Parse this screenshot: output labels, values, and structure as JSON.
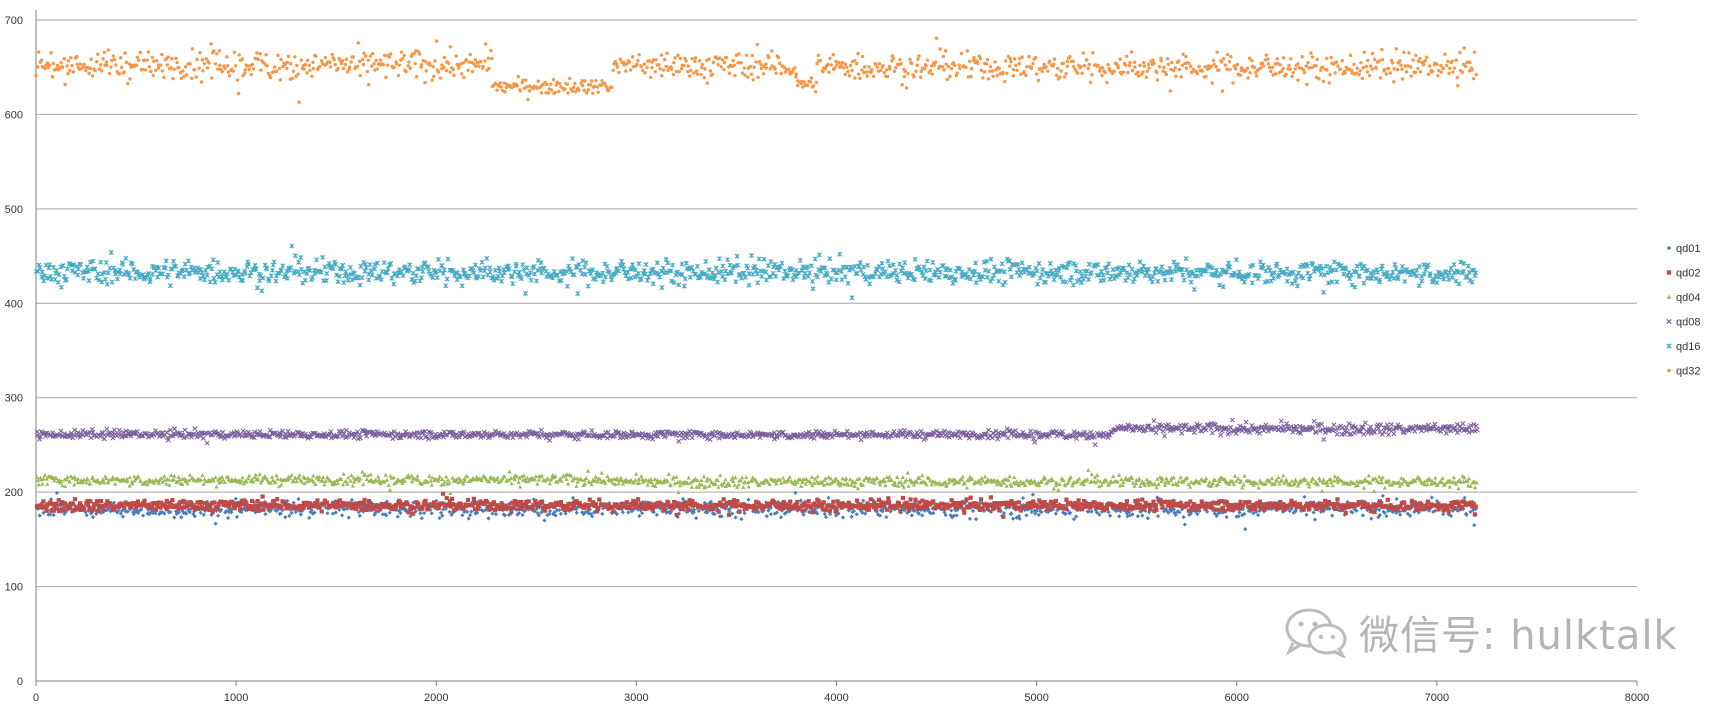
{
  "chart_data": {
    "type": "scatter",
    "title": "",
    "xlabel": "",
    "ylabel": "",
    "xlim": [
      0,
      8000
    ],
    "ylim": [
      0,
      700
    ],
    "x_ticks": [
      0,
      1000,
      2000,
      3000,
      4000,
      5000,
      6000,
      7000,
      8000
    ],
    "y_ticks": [
      0,
      100,
      200,
      300,
      400,
      500,
      600,
      700
    ],
    "grid": "horizontal",
    "legend": "right",
    "x_max_point": 7200,
    "series": [
      {
        "name": "qd01",
        "color": "#4a7ebb",
        "marker": "diamond",
        "segments": [
          {
            "x_start": 0,
            "x_end": 7200,
            "level": 182,
            "spread": 6
          }
        ]
      },
      {
        "name": "qd02",
        "color": "#be4b48",
        "marker": "square",
        "segments": [
          {
            "x_start": 0,
            "x_end": 7200,
            "level": 186,
            "spread": 4
          }
        ]
      },
      {
        "name": "qd04",
        "color": "#98b954",
        "marker": "triangle",
        "segments": [
          {
            "x_start": 0,
            "x_end": 2900,
            "level": 213,
            "spread": 4
          },
          {
            "x_start": 2900,
            "x_end": 7200,
            "level": 211,
            "spread": 4
          }
        ]
      },
      {
        "name": "qd08",
        "color": "#7d5fa0",
        "marker": "x",
        "segments": [
          {
            "x_start": 0,
            "x_end": 5380,
            "level": 261,
            "spread": 3
          },
          {
            "x_start": 5380,
            "x_end": 7200,
            "level": 267,
            "spread": 4
          }
        ]
      },
      {
        "name": "qd16",
        "color": "#46aac5",
        "marker": "star",
        "segments": [
          {
            "x_start": 0,
            "x_end": 7200,
            "level": 433,
            "spread": 9
          }
        ]
      },
      {
        "name": "qd32",
        "color": "#f79646",
        "marker": "circle",
        "segments": [
          {
            "x_start": 0,
            "x_end": 2280,
            "level": 652,
            "spread": 11
          },
          {
            "x_start": 2280,
            "x_end": 2880,
            "level": 630,
            "spread": 5
          },
          {
            "x_start": 2880,
            "x_end": 3800,
            "level": 651,
            "spread": 10
          },
          {
            "x_start": 3800,
            "x_end": 3900,
            "level": 632,
            "spread": 5
          },
          {
            "x_start": 3900,
            "x_end": 7200,
            "level": 650,
            "spread": 10
          }
        ]
      }
    ]
  },
  "watermark": {
    "text": "微信号: hulktalk",
    "icon": "wechat-logo-icon"
  },
  "colors": {
    "gridline": "#a6a6a6",
    "axis": "#7f7f7f",
    "text": "#333333"
  }
}
